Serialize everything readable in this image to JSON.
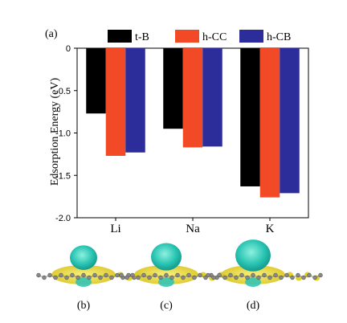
{
  "chart_data": {
    "type": "bar",
    "panel_label": "(a)",
    "categories": [
      "Li",
      "Na",
      "K"
    ],
    "series": [
      {
        "name": "t-B",
        "color": "#000000",
        "values": [
          -0.77,
          -0.95,
          -1.63
        ]
      },
      {
        "name": "h-CC",
        "color": "#f24a26",
        "values": [
          -1.27,
          -1.17,
          -1.76
        ]
      },
      {
        "name": "h-CB",
        "color": "#2c2d9a",
        "values": [
          -1.23,
          -1.16,
          -1.71
        ]
      }
    ],
    "title": "",
    "xlabel": "",
    "ylabel": "Edsorption Energy (eV)",
    "ylim": [
      -2.0,
      0
    ],
    "yticks": [
      0,
      -0.5,
      -1.0,
      -1.5,
      -2.0
    ],
    "ytick_labels": [
      "0",
      "-0.5",
      "-1.0",
      "-1.5",
      "-2.0"
    ],
    "legend_position": "top"
  },
  "structures": [
    {
      "label": "(b)",
      "lobe_size": "small"
    },
    {
      "label": "(c)",
      "lobe_size": "medium"
    },
    {
      "label": "(d)",
      "lobe_size": "large"
    }
  ]
}
